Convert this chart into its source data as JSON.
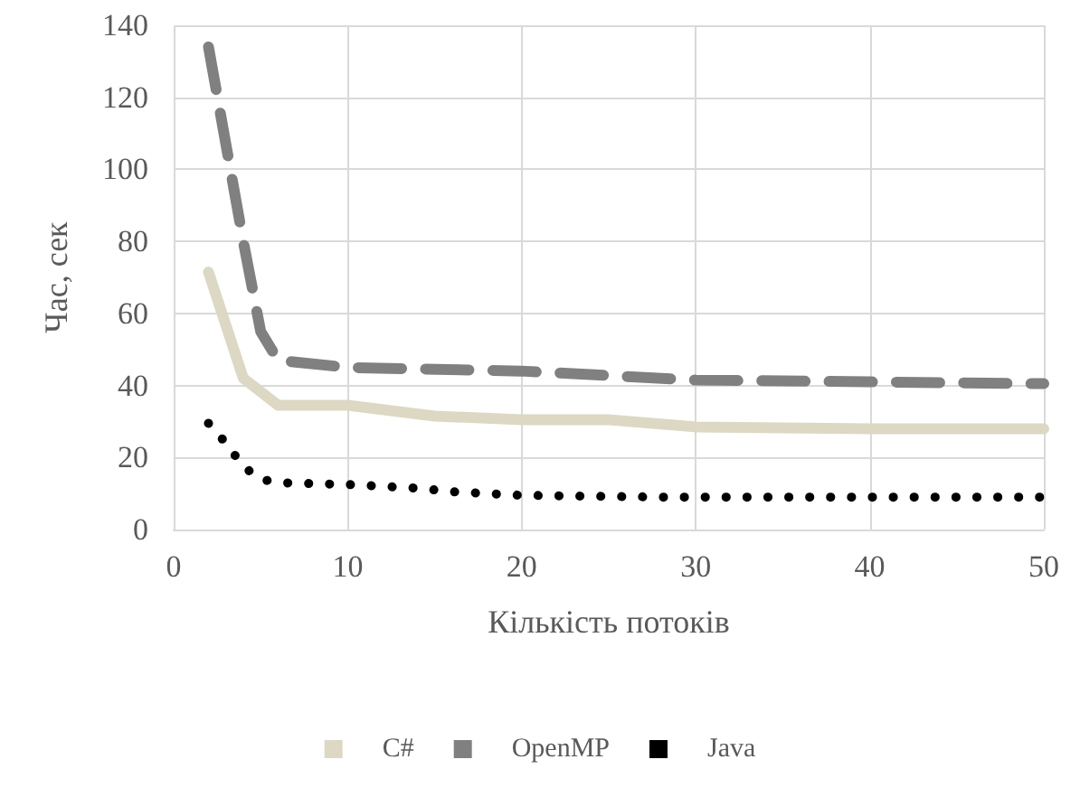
{
  "chart_data": {
    "type": "line",
    "xlabel": "Кількість потоків",
    "ylabel": "Час, сек",
    "xlim": [
      0,
      50
    ],
    "xticks": [
      0,
      10,
      20,
      30,
      40,
      50
    ],
    "ylim": [
      0,
      140
    ],
    "yticks": [
      0,
      20,
      40,
      60,
      80,
      100,
      120,
      140
    ],
    "grid": true,
    "legend": "bottom",
    "marker": "none",
    "series": [
      {
        "name": "C#",
        "color": "#ddd8c4",
        "line_style": "solid",
        "x": [
          2,
          4,
          6,
          10,
          15,
          20,
          25,
          30,
          40,
          50
        ],
        "values": [
          71.5,
          42,
          34.5,
          34.5,
          31.5,
          30.5,
          30.5,
          28.5,
          28,
          28
        ]
      },
      {
        "name": "OpenMP",
        "color": "#808080",
        "line_style": "dashed",
        "x": [
          2,
          4,
          5,
          6,
          10,
          20,
          30,
          40,
          50
        ],
        "values": [
          134,
          80,
          55,
          47,
          45,
          44,
          41.5,
          41,
          40.5
        ]
      },
      {
        "name": "Java",
        "color": "#000000",
        "line_style": "dotted",
        "x": [
          2,
          3,
          4,
          5,
          6,
          10,
          14,
          16,
          20,
          28,
          40,
          50
        ],
        "values": [
          29.5,
          24,
          17.5,
          14,
          13,
          12.5,
          11.5,
          10.5,
          9.5,
          9,
          9,
          9
        ]
      }
    ]
  }
}
